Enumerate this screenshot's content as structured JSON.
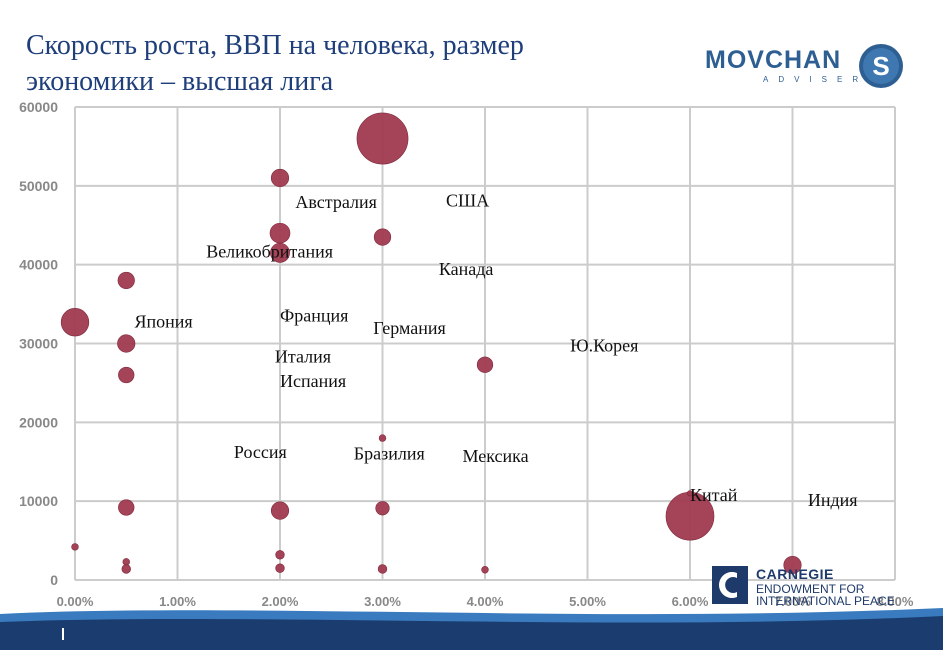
{
  "slide": {
    "title_line1": "Скорость роста, ВВП на человека, размер",
    "title_line2": "экономики – высшая лига"
  },
  "logos": {
    "movchan_word": "MOVCHAN",
    "movchan_sub": "ADVISER",
    "movchan_mark": "S",
    "carnegie_title": "CARNEGIE",
    "carnegie_sub1": "ENDOWMENT FOR",
    "carnegie_sub2": "INTERNATIONAL PEACE"
  },
  "colors": {
    "title": "#1f3f7a",
    "bubble": "#a0394f",
    "grid": "#cccccc",
    "axis_text": "#888888",
    "footer_dark": "#1a3c6e",
    "footer_light": "#3a7bbf"
  },
  "chart_data": {
    "type": "scatter",
    "title": "",
    "xlabel": "",
    "ylabel": "",
    "xlim": [
      0,
      0.08
    ],
    "ylim": [
      0,
      60000
    ],
    "grid": true,
    "x_ticks": [
      0,
      0.01,
      0.02,
      0.03,
      0.04,
      0.05,
      0.06,
      0.07,
      0.08
    ],
    "x_tick_labels": [
      "0.00%",
      "1.00%",
      "2.00%",
      "3.00%",
      "4.00%",
      "5.00%",
      "6.00%",
      "7.00%",
      "8.00%"
    ],
    "y_ticks": [
      0,
      10000,
      20000,
      30000,
      40000,
      50000,
      60000
    ],
    "y_tick_labels": [
      "0",
      "10000",
      "20000",
      "30000",
      "40000",
      "50000",
      "60000"
    ],
    "points": [
      {
        "x": 0.03,
        "y": 56000,
        "size": 17.0
      },
      {
        "x": 0.02,
        "y": 51000,
        "size": 2.0
      },
      {
        "x": 0.02,
        "y": 44000,
        "size": 2.6
      },
      {
        "x": 0.02,
        "y": 41500,
        "size": 2.4
      },
      {
        "x": 0.03,
        "y": 43500,
        "size": 1.8
      },
      {
        "x": 0.005,
        "y": 38000,
        "size": 1.8
      },
      {
        "x": 0.0,
        "y": 32700,
        "size": 5.0
      },
      {
        "x": 0.005,
        "y": 30000,
        "size": 2.0
      },
      {
        "x": 0.005,
        "y": 26000,
        "size": 1.6
      },
      {
        "x": 0.04,
        "y": 27300,
        "size": 1.6
      },
      {
        "x": 0.03,
        "y": 18000,
        "size": 0.3
      },
      {
        "x": 0.005,
        "y": 9200,
        "size": 1.6
      },
      {
        "x": 0.02,
        "y": 8800,
        "size": 2.0
      },
      {
        "x": 0.03,
        "y": 9100,
        "size": 1.2
      },
      {
        "x": 0.06,
        "y": 8100,
        "size": 15.0
      },
      {
        "x": 0.06,
        "y": 11000,
        "size": 0.2
      },
      {
        "x": 0.07,
        "y": 1900,
        "size": 2.0
      },
      {
        "x": 0.0,
        "y": 4200,
        "size": 0.3
      },
      {
        "x": 0.005,
        "y": 2300,
        "size": 0.3
      },
      {
        "x": 0.005,
        "y": 1400,
        "size": 0.5
      },
      {
        "x": 0.02,
        "y": 3200,
        "size": 0.5
      },
      {
        "x": 0.02,
        "y": 1500,
        "size": 0.5
      },
      {
        "x": 0.03,
        "y": 1400,
        "size": 0.5
      },
      {
        "x": 0.04,
        "y": 1300,
        "size": 0.3
      }
    ],
    "annotations": [
      {
        "text": "Австралия",
        "x": 0.0215,
        "y": 47200
      },
      {
        "text": "США",
        "x": 0.0362,
        "y": 47400
      },
      {
        "text": "Великобритания",
        "x": 0.0128,
        "y": 40900
      },
      {
        "text": "Канада",
        "x": 0.0355,
        "y": 38700
      },
      {
        "text": "Япония",
        "x": 0.0058,
        "y": 32000
      },
      {
        "text": "Франция",
        "x": 0.02,
        "y": 32800
      },
      {
        "text": "Германия",
        "x": 0.0291,
        "y": 31200
      },
      {
        "text": "Ю.Корея",
        "x": 0.0483,
        "y": 29000
      },
      {
        "text": "Италия",
        "x": 0.0195,
        "y": 27600
      },
      {
        "text": "Испания",
        "x": 0.02,
        "y": 24500
      },
      {
        "text": "Россия",
        "x": 0.0155,
        "y": 15500
      },
      {
        "text": "Бразилия",
        "x": 0.0272,
        "y": 15300
      },
      {
        "text": "Мексика",
        "x": 0.0378,
        "y": 15000
      },
      {
        "text": "Китай",
        "x": 0.06,
        "y": 10000
      },
      {
        "text": "Индия",
        "x": 0.0715,
        "y": 9400
      }
    ]
  }
}
